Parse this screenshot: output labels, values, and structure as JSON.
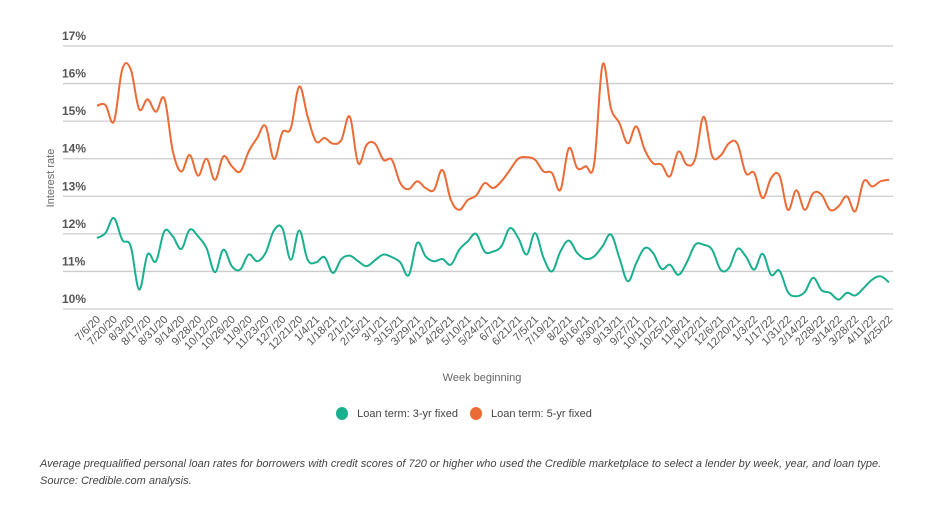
{
  "chart_data": {
    "type": "line",
    "title": "",
    "xlabel": "Week beginning",
    "ylabel": "Interest rate",
    "ylim": [
      10,
      17
    ],
    "y_ticks": [
      "10%",
      "11%",
      "12%",
      "13%",
      "14%",
      "15%",
      "16%",
      "17%"
    ],
    "grid": true,
    "legend_position": "bottom",
    "x_tick_labels": [
      "7/6/20",
      "7/20/20",
      "8/3/20",
      "8/17/20",
      "8/31/20",
      "9/14/20",
      "9/28/20",
      "10/12/20",
      "10/26/20",
      "11/9/20",
      "11/23/20",
      "12/7/20",
      "12/21/20",
      "1/4/21",
      "1/18/21",
      "2/1/21",
      "2/15/21",
      "3/1/21",
      "3/15/21",
      "3/29/21",
      "4/12/21",
      "4/26/21",
      "5/10/21",
      "5/24/21",
      "6/7/21",
      "6/21/21",
      "7/5/21",
      "7/19/21",
      "8/2/21",
      "8/16/21",
      "8/30/21",
      "9/13/21",
      "9/27/21",
      "10/11/21",
      "10/25/21",
      "11/8/21",
      "11/22/21",
      "12/6/21",
      "12/20/21",
      "1/3/22",
      "1/17/22",
      "1/31/22",
      "2/14/22",
      "2/28/22",
      "3/14/22",
      "3/28/22",
      "4/11/22",
      "4/25/22"
    ],
    "x_note_weekly_points_from": "7/6/20",
    "series": [
      {
        "name": "Loan term: 3-yr fixed",
        "color": "#1aaf8f",
        "values": [
          11.89,
          12.02,
          12.42,
          11.84,
          11.67,
          10.52,
          11.45,
          11.27,
          12.07,
          11.93,
          11.6,
          12.11,
          11.93,
          11.62,
          10.98,
          11.58,
          11.14,
          11.05,
          11.45,
          11.27,
          11.49,
          12.09,
          12.15,
          11.31,
          12.09,
          11.31,
          11.24,
          11.38,
          10.96,
          11.33,
          11.42,
          11.27,
          11.14,
          11.3,
          11.45,
          11.38,
          11.24,
          10.9,
          11.76,
          11.4,
          11.27,
          11.33,
          11.18,
          11.58,
          11.8,
          12.0,
          11.53,
          11.53,
          11.67,
          12.15,
          11.89,
          11.45,
          12.02,
          11.36,
          11.0,
          11.53,
          11.82,
          11.49,
          11.33,
          11.4,
          11.67,
          11.98,
          11.36,
          10.74,
          11.22,
          11.62,
          11.49,
          11.07,
          11.18,
          10.91,
          11.24,
          11.71,
          11.71,
          11.58,
          11.05,
          11.09,
          11.6,
          11.4,
          11.05,
          11.47,
          10.91,
          11.02,
          10.45,
          10.34,
          10.45,
          10.83,
          10.5,
          10.43,
          10.25,
          10.43,
          10.36,
          10.56,
          10.78,
          10.87,
          10.71
        ]
      },
      {
        "name": "Loan term: 5-yr fixed",
        "color": "#ec6a35",
        "values": [
          15.41,
          15.43,
          14.99,
          16.38,
          16.38,
          15.32,
          15.58,
          15.25,
          15.6,
          14.2,
          13.66,
          14.1,
          13.55,
          14.0,
          13.44,
          14.06,
          13.8,
          13.66,
          14.19,
          14.55,
          14.87,
          13.99,
          14.7,
          14.81,
          15.92,
          15.12,
          14.46,
          14.55,
          14.4,
          14.5,
          15.12,
          13.88,
          14.37,
          14.4,
          13.97,
          13.97,
          13.35,
          13.19,
          13.4,
          13.22,
          13.17,
          13.7,
          12.9,
          12.64,
          12.9,
          13.02,
          13.35,
          13.22,
          13.4,
          13.7,
          14.0,
          14.04,
          13.97,
          13.66,
          13.62,
          13.17,
          14.28,
          13.75,
          13.8,
          13.85,
          16.5,
          15.34,
          14.95,
          14.41,
          14.86,
          14.24,
          13.88,
          13.84,
          13.53,
          14.19,
          13.84,
          14.0,
          15.12,
          14.08,
          14.08,
          14.41,
          14.4,
          13.62,
          13.62,
          12.95,
          13.48,
          13.55,
          12.64,
          13.16,
          12.64,
          13.08,
          13.04,
          12.64,
          12.73,
          13.0,
          12.6,
          13.4,
          13.26,
          13.4,
          13.44
        ]
      }
    ]
  },
  "legend": {
    "items": [
      {
        "label": "Loan term: 3-yr fixed",
        "color": "#1aaf8f"
      },
      {
        "label": "Loan term: 5-yr fixed",
        "color": "#ec6a35"
      }
    ]
  },
  "caption": "Average prequalified personal loan rates for borrowers with credit scores of 720 or higher who used the Credible marketplace to select a lender by week, year, and loan type. Source: Credible.com analysis."
}
